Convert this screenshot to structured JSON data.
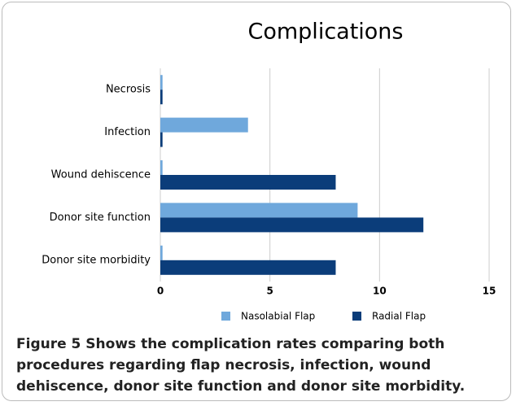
{
  "chart_data": {
    "type": "hbar",
    "title": "Complications",
    "categories": [
      "Necrosis",
      "Infection",
      "Wound dehiscence",
      "Donor site function",
      "Donor site morbidity"
    ],
    "series": [
      {
        "name": "Nasolabial Flap",
        "color": "#6fa8dc",
        "values": [
          0.1,
          4,
          0.1,
          9,
          0.1
        ]
      },
      {
        "name": "Radial Flap",
        "color": "#0b3d7a",
        "values": [
          0.1,
          0.1,
          8,
          12,
          8
        ]
      }
    ],
    "xlim": [
      0,
      15
    ],
    "xticks": [
      0,
      5,
      10,
      15
    ],
    "grid": true,
    "legend": "bottom"
  },
  "caption": {
    "label": "Figure 5",
    "text": "Shows the complication rates comparing both procedures regarding flap necrosis, infection, wound dehiscence, donor site function and donor site morbidity."
  }
}
